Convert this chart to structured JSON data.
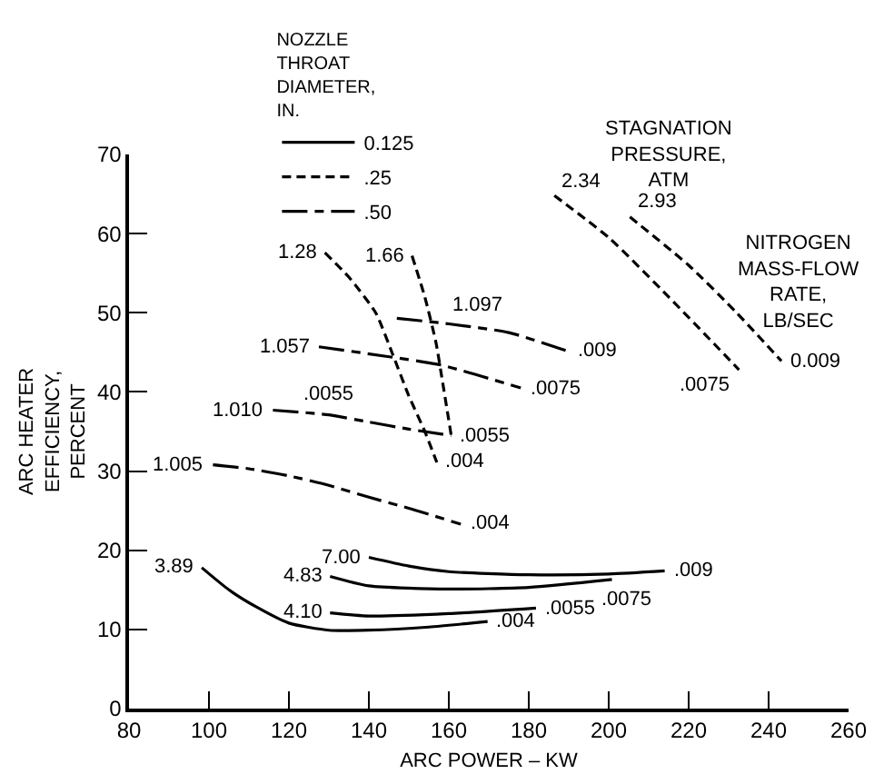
{
  "chart_data": {
    "type": "line",
    "xlabel": "ARC POWER – KW",
    "ylabel": "ARC HEATER EFFICIENCY, PERCENT",
    "legend_title": "NOZZLE THROAT DIAMETER, IN.",
    "legend": "top",
    "grid": false,
    "xlim": [
      80,
      260
    ],
    "xticks": [
      80,
      100,
      120,
      140,
      160,
      180,
      200,
      220,
      240,
      260
    ],
    "ylim": [
      0,
      70
    ],
    "yticks": [
      0,
      10,
      20,
      30,
      40,
      50,
      60,
      70
    ],
    "series": [
      {
        "name": "0.125",
        "color": "#000000",
        "line_style": "solid",
        "x": [
          98.2,
          105,
          112,
          120,
          130,
          140,
          155,
          169.7
        ],
        "values": [
          17.8,
          15,
          12.8,
          10.8,
          9.9,
          9.9,
          10.3,
          11
        ]
      },
      {
        "color": "#000000",
        "line_style": "solid",
        "x": [
          130.3,
          140,
          160,
          181.8
        ],
        "values": [
          12.1,
          11.7,
          12,
          12.7
        ]
      },
      {
        "color": "#000000",
        "line_style": "solid",
        "x": [
          130.3,
          140,
          160,
          180,
          200.8
        ],
        "values": [
          16.7,
          15.5,
          15.1,
          15.3,
          16.3
        ]
      },
      {
        "color": "#000000",
        "line_style": "solid",
        "x": [
          140,
          150,
          160,
          180,
          200,
          214
        ],
        "values": [
          19.1,
          18,
          17.3,
          16.9,
          17,
          17.4
        ]
      },
      {
        "name": ".25",
        "color": "#000000",
        "line_style": "dashed",
        "x": [
          129,
          135,
          141.7,
          146,
          150,
          154,
          157
        ],
        "values": [
          57.6,
          54.5,
          50,
          44.7,
          39.5,
          35,
          31.1
        ]
      },
      {
        "color": "#000000",
        "line_style": "dashed",
        "x": [
          150.8,
          154,
          156.8,
          158.3,
          160.6
        ],
        "values": [
          57.2,
          52,
          46.2,
          41.7,
          34.5
        ]
      },
      {
        "color": "#000000",
        "line_style": "dashed",
        "x": [
          186.4,
          200,
          215,
          232.6
        ],
        "values": [
          64.8,
          59.5,
          52,
          42.8
        ]
      },
      {
        "color": "#000000",
        "line_style": "dashed",
        "x": [
          205.3,
          220,
          232,
          243.2
        ],
        "values": [
          62.1,
          56,
          50,
          43.9
        ]
      },
      {
        "name": ".50",
        "color": "#000000",
        "line_style": "dashdot",
        "x": [
          101,
          110,
          120,
          130,
          140,
          150,
          163
        ],
        "values": [
          30.8,
          30.3,
          29.4,
          28.2,
          26.7,
          25.3,
          23.3
        ]
      },
      {
        "color": "#000000",
        "line_style": "dashdot",
        "x": [
          116,
          130,
          140,
          150,
          160.6
        ],
        "values": [
          37.7,
          37.1,
          36.2,
          35.3,
          34.5
        ]
      },
      {
        "color": "#000000",
        "line_style": "dashdot",
        "x": [
          127.5,
          144.3,
          158,
          178
        ],
        "values": [
          45.7,
          44.5,
          43.4,
          40.5
        ]
      },
      {
        "color": "#000000",
        "line_style": "dashdot",
        "x": [
          147,
          160,
          175,
          190
        ],
        "values": [
          49.3,
          48.6,
          47.5,
          45.1
        ]
      }
    ],
    "annotations": [
      "STAGNATION PRESSURE, ATM",
      "NITROGEN MASS-FLOW RATE, LB/SEC",
      {
        "text": "3.89",
        "x": 98.2,
        "y": 17.8
      },
      {
        "text": "4.10",
        "x": 130.3,
        "y": 12.1
      },
      {
        "text": "4.83",
        "x": 130.3,
        "y": 16.7
      },
      {
        "text": "7.00",
        "x": 140,
        "y": 19.1
      },
      {
        "text": ".004",
        "x": 169.7,
        "y": 11
      },
      {
        "text": ".0055",
        "x": 181.8,
        "y": 12.7
      },
      {
        "text": ".0075",
        "x": 200.8,
        "y": 16.3
      },
      {
        "text": ".009",
        "x": 214,
        "y": 17.4
      },
      {
        "text": "1.005",
        "x": 101,
        "y": 30.8
      },
      {
        "text": ".004",
        "x": 163,
        "y": 23.3
      },
      {
        "text": "1.010",
        "x": 116,
        "y": 37.7
      },
      {
        "text": ".0055",
        "x": 130,
        "y": 37.1
      },
      {
        "text": "1.057",
        "x": 127.5,
        "y": 45.7
      },
      {
        "text": ".0075",
        "x": 178,
        "y": 40.5
      },
      {
        "text": "1.097",
        "x": 160,
        "y": 48.6
      },
      {
        "text": ".009",
        "x": 190,
        "y": 45.1
      },
      {
        "text": "1.28",
        "x": 129,
        "y": 57.6
      },
      {
        "text": ".004",
        "x": 157,
        "y": 31.1
      },
      {
        "text": "1.66",
        "x": 150.8,
        "y": 57.2
      },
      {
        "text": ".0055",
        "x": 160.6,
        "y": 34.5
      },
      {
        "text": "2.34",
        "x": 186.4,
        "y": 64.8
      },
      {
        "text": ".0075",
        "x": 232.6,
        "y": 42.8
      },
      {
        "text": "2.93",
        "x": 205.3,
        "y": 62.1
      },
      {
        "text": "0.009",
        "x": 243.2,
        "y": 43.9
      }
    ]
  }
}
